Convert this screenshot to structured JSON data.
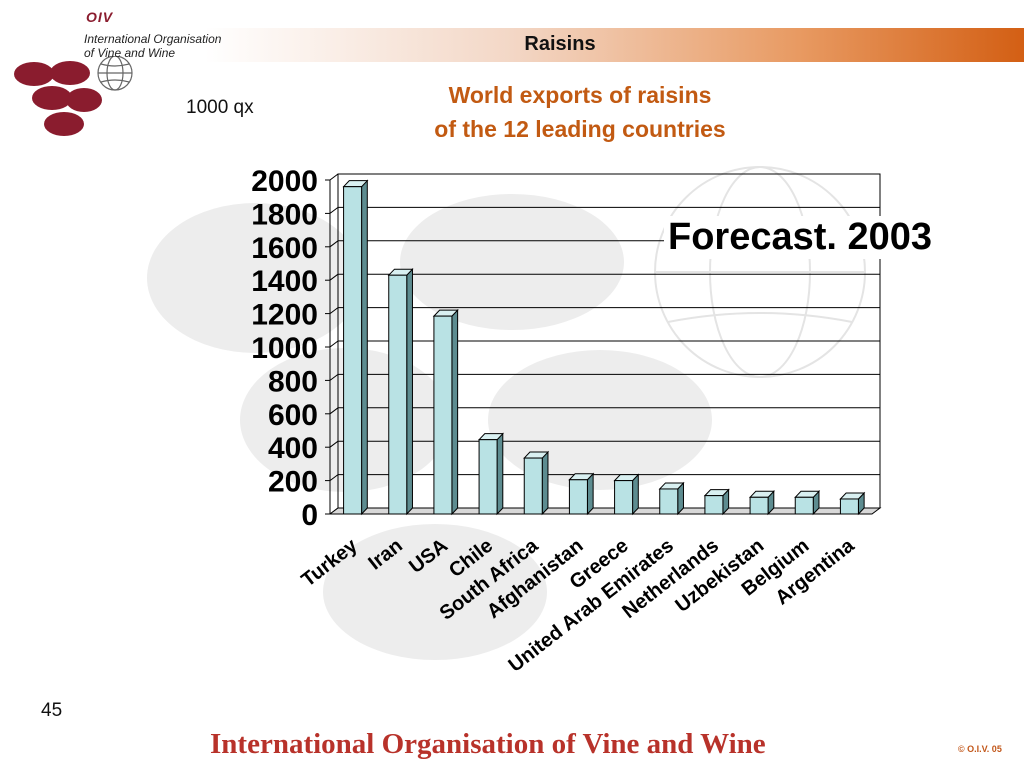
{
  "header": {
    "logo_mark": "OIV",
    "org_line1": "International Organisation",
    "org_line2": "of  Vine  and  Wine",
    "banner_title": "Raisins"
  },
  "chart_title_line1": "World exports of raisins",
  "chart_title_line2": "of the 12 leading countries",
  "unit_label": "1000 qx",
  "annotation": "Forecast. 2003",
  "footer": {
    "organisation": "International Organisation of Vine and Wine",
    "page_number": "45",
    "copyright": "© O.I.V. 05"
  },
  "colors": {
    "bar_face": "#b9e2e4",
    "bar_side": "#5d8c90",
    "title": "#c25a12",
    "footer": "#b8322a",
    "grape": "#8a1c2e"
  },
  "chart_data": {
    "type": "bar",
    "categories": [
      "Turkey",
      "Iran",
      "USA",
      "Chile",
      "South Africa",
      "Afghanistan",
      "Greece",
      "United Arab Emirates",
      "Netherlands",
      "Uzbekistan",
      "Belgium",
      "Argentina"
    ],
    "values": [
      1960,
      1430,
      1185,
      445,
      335,
      205,
      200,
      150,
      110,
      100,
      100,
      90
    ],
    "ylim": [
      0,
      2000
    ],
    "yticks": [
      "0",
      "200",
      "400",
      "600",
      "800",
      "1000",
      "1200",
      "1400",
      "1600",
      "1800",
      "2000"
    ],
    "grid": true,
    "style": "3d"
  }
}
